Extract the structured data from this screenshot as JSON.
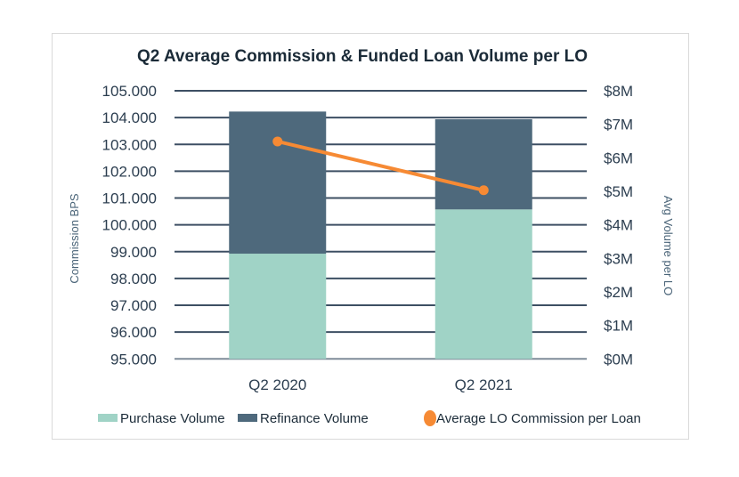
{
  "chart_data": {
    "type": "bar",
    "subtype": "stacked-bar-with-line-dual-axis",
    "title": "Q2 Average Commission & Funded Loan Volume per LO",
    "categories": [
      "Q2 2020",
      "Q2 2021"
    ],
    "series": [
      {
        "name": "Purchase Volume",
        "type": "bar",
        "axis": "right",
        "color": "#a0d3c6",
        "values": [
          3.14,
          4.46
        ]
      },
      {
        "name": "Refinance Volume",
        "type": "bar",
        "axis": "right",
        "color": "#4e697c",
        "values": [
          4.24,
          2.69
        ]
      },
      {
        "name": "Average LO Commission per Loan",
        "type": "line",
        "axis": "left",
        "color": "#f68a34",
        "values": [
          103.11,
          101.29
        ]
      }
    ],
    "y_left": {
      "label": "Commission BPS",
      "range": [
        95,
        105
      ],
      "ticks": [
        "95.000",
        "96.000",
        "97.000",
        "98.000",
        "99.000",
        "100.000",
        "101.000",
        "102.000",
        "103.000",
        "104.000",
        "105.000"
      ]
    },
    "y_right": {
      "label": "Avg Volume per LO",
      "unit": "$M",
      "range": [
        0,
        8
      ],
      "ticks": [
        "$0M",
        "$1M",
        "$2M",
        "$3M",
        "$4M",
        "$5M",
        "$6M",
        "$7M",
        "$8M"
      ]
    },
    "xlabel": "",
    "grid": true,
    "legend_position": "bottom"
  },
  "colors": {
    "title": "#1b2b38",
    "gridline": "#3d4f63",
    "tick_text": "#2c3e50",
    "axis_label": "#4a6478"
  }
}
